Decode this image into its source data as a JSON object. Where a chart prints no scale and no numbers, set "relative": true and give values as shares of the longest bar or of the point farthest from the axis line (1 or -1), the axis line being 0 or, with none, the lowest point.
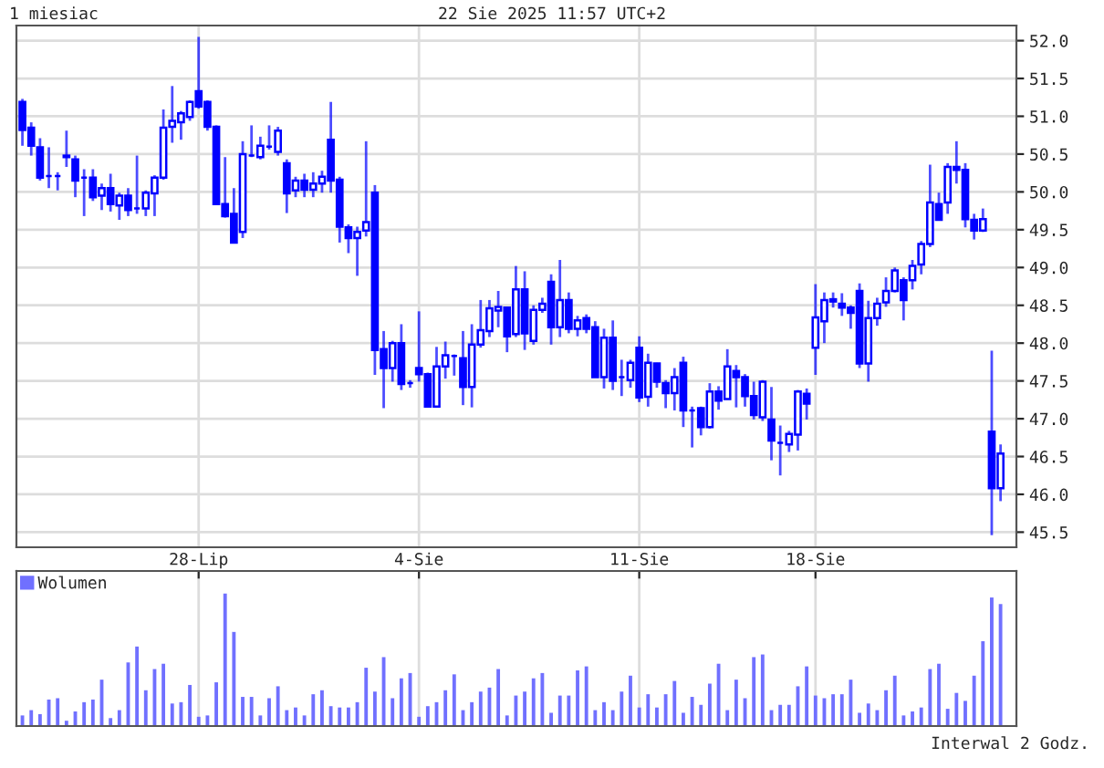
{
  "chart_data": [
    {
      "type": "candlestick",
      "title": "1 miesiac",
      "annotations": [
        "22 Sie 2025 11:57 UTC+2"
      ],
      "color": "#0000ff",
      "grid": true,
      "categories": [
        null,
        null,
        null,
        null,
        null,
        null,
        null,
        null,
        null,
        null,
        null,
        null,
        null,
        null,
        null,
        null,
        null,
        null,
        null,
        null,
        "28-Lip",
        null,
        null,
        null,
        null,
        null,
        null,
        null,
        null,
        null,
        null,
        null,
        null,
        null,
        null,
        null,
        null,
        null,
        null,
        null,
        null,
        null,
        null,
        null,
        null,
        "4-Sie",
        null,
        null,
        null,
        null,
        null,
        null,
        null,
        null,
        null,
        null,
        null,
        null,
        null,
        null,
        null,
        null,
        null,
        null,
        null,
        null,
        null,
        null,
        null,
        null,
        "11-Sie",
        null,
        null,
        null,
        null,
        null,
        null,
        null,
        null,
        null,
        null,
        null,
        null,
        null,
        null,
        null,
        null,
        null,
        null,
        null,
        "18-Sie",
        null,
        null,
        null,
        null,
        null,
        null,
        null,
        null,
        null,
        null,
        null,
        null,
        null,
        null,
        null,
        null,
        null,
        null,
        null,
        null,
        null
      ],
      "ylim": [
        45.3,
        52.2
      ],
      "yticks": [
        {
          "value": 45.5,
          "label": "45.5"
        },
        {
          "value": 46,
          "label": "46.0"
        },
        {
          "value": 46.5,
          "label": "46.5"
        },
        {
          "value": 47,
          "label": "47.0"
        },
        {
          "value": 47.5,
          "label": "47.5"
        },
        {
          "value": 48,
          "label": "48.0"
        },
        {
          "value": 48.5,
          "label": "48.5"
        },
        {
          "value": 49,
          "label": "49.0"
        },
        {
          "value": 49.5,
          "label": "49.5"
        },
        {
          "value": 50,
          "label": "50.0"
        },
        {
          "value": 50.5,
          "label": "50.5"
        },
        {
          "value": 51,
          "label": "51.0"
        },
        {
          "value": 51.5,
          "label": "51.5"
        },
        {
          "value": 52,
          "label": "52.0"
        }
      ],
      "ohlc": [
        [
          51.19,
          51.23,
          50.61,
          50.82
        ],
        [
          50.85,
          50.92,
          50.48,
          50.61
        ],
        [
          50.59,
          50.71,
          50.15,
          50.19
        ],
        [
          50.21,
          50.59,
          50.05,
          50.21
        ],
        [
          50.21,
          50.26,
          50.02,
          50.21
        ],
        [
          50.48,
          50.81,
          50.33,
          50.46
        ],
        [
          50.43,
          50.48,
          49.93,
          50.15
        ],
        [
          50.19,
          50.3,
          49.68,
          50.19
        ],
        [
          50.19,
          50.3,
          49.88,
          49.93
        ],
        [
          49.95,
          50.11,
          49.76,
          50.05
        ],
        [
          50.05,
          50.24,
          49.74,
          49.84
        ],
        [
          49.82,
          49.99,
          49.63,
          49.95
        ],
        [
          49.95,
          50.05,
          49.68,
          49.76
        ],
        [
          49.78,
          50.48,
          49.71,
          49.78
        ],
        [
          49.78,
          50.02,
          49.68,
          49.99
        ],
        [
          49.98,
          50.22,
          49.68,
          50.19
        ],
        [
          50.19,
          51.09,
          50.16,
          50.85
        ],
        [
          50.86,
          51.4,
          50.65,
          50.94
        ],
        [
          50.92,
          51.07,
          50.69,
          51.04
        ],
        [
          50.99,
          51.21,
          50.94,
          51.19
        ],
        [
          51.33,
          52.05,
          51.1,
          51.13
        ],
        [
          51.19,
          51.21,
          50.81,
          50.86
        ],
        [
          50.86,
          50.88,
          49.84,
          49.84
        ],
        [
          49.84,
          50.46,
          49.66,
          49.68
        ],
        [
          49.71,
          50.05,
          49.32,
          49.33
        ],
        [
          49.47,
          50.67,
          49.39,
          50.5
        ],
        [
          50.48,
          50.88,
          50.46,
          50.48
        ],
        [
          50.46,
          50.73,
          50.43,
          50.61
        ],
        [
          50.6,
          50.88,
          50.56,
          50.6
        ],
        [
          50.53,
          50.86,
          50.48,
          50.81
        ],
        [
          50.38,
          50.43,
          49.72,
          49.98
        ],
        [
          50.02,
          50.2,
          49.93,
          50.15
        ],
        [
          50.15,
          50.24,
          49.93,
          50.03
        ],
        [
          50.03,
          50.26,
          49.93,
          50.11
        ],
        [
          50.11,
          50.28,
          49.99,
          50.2
        ],
        [
          50.69,
          51.19,
          49.99,
          50.15
        ],
        [
          50.16,
          50.2,
          49.33,
          49.54
        ],
        [
          49.53,
          49.57,
          49.19,
          49.39
        ],
        [
          49.39,
          49.54,
          48.89,
          49.47
        ],
        [
          49.49,
          50.67,
          49.41,
          49.6
        ],
        [
          49.99,
          50.09,
          47.58,
          47.91
        ],
        [
          47.92,
          48.16,
          47.14,
          47.67
        ],
        [
          47.67,
          48.03,
          47.49,
          48.0
        ],
        [
          48.0,
          48.25,
          47.38,
          47.46
        ],
        [
          47.47,
          47.51,
          47.41,
          47.47
        ],
        [
          47.67,
          48.42,
          47.49,
          47.59
        ],
        [
          47.59,
          47.61,
          47.15,
          47.16
        ],
        [
          47.16,
          47.95,
          47.15,
          47.69
        ],
        [
          47.69,
          48.02,
          47.53,
          47.84
        ],
        [
          47.83,
          47.85,
          47.57,
          47.83
        ],
        [
          47.8,
          48.16,
          47.18,
          47.42
        ],
        [
          47.42,
          48.25,
          47.15,
          47.98
        ],
        [
          47.98,
          48.57,
          47.94,
          48.17
        ],
        [
          48.16,
          48.57,
          48.08,
          48.46
        ],
        [
          48.43,
          48.69,
          48.21,
          48.48
        ],
        [
          48.47,
          48.48,
          47.88,
          48.09
        ],
        [
          48.12,
          49.02,
          48.08,
          48.71
        ],
        [
          48.71,
          48.95,
          47.91,
          48.13
        ],
        [
          48.03,
          48.5,
          47.98,
          48.44
        ],
        [
          48.44,
          48.6,
          48.4,
          48.52
        ],
        [
          48.81,
          48.91,
          47.98,
          48.21
        ],
        [
          48.21,
          49.1,
          48.08,
          48.57
        ],
        [
          48.57,
          48.67,
          48.13,
          48.19
        ],
        [
          48.19,
          48.36,
          48.09,
          48.3
        ],
        [
          48.33,
          48.38,
          48.13,
          48.19
        ],
        [
          48.21,
          48.29,
          47.55,
          47.55
        ],
        [
          47.55,
          48.19,
          47.4,
          48.07
        ],
        [
          48.07,
          48.3,
          47.38,
          47.5
        ],
        [
          47.55,
          47.78,
          47.3,
          47.55
        ],
        [
          47.51,
          47.78,
          47.41,
          47.74
        ],
        [
          47.94,
          48.09,
          47.22,
          47.28
        ],
        [
          47.29,
          47.86,
          47.16,
          47.74
        ],
        [
          47.73,
          47.74,
          47.41,
          47.49
        ],
        [
          47.47,
          47.51,
          47.14,
          47.34
        ],
        [
          47.34,
          47.67,
          47.11,
          47.55
        ],
        [
          47.74,
          47.82,
          46.89,
          47.11
        ],
        [
          47.11,
          47.16,
          46.62,
          47.11
        ],
        [
          47.14,
          47.16,
          46.78,
          46.89
        ],
        [
          46.89,
          47.47,
          46.87,
          47.36
        ],
        [
          47.36,
          47.43,
          47.12,
          47.24
        ],
        [
          47.26,
          47.92,
          47.26,
          47.69
        ],
        [
          47.63,
          47.71,
          47.15,
          47.55
        ],
        [
          47.55,
          47.59,
          47.16,
          47.3
        ],
        [
          47.3,
          47.49,
          46.99,
          47.05
        ],
        [
          47.02,
          47.51,
          46.97,
          47.49
        ],
        [
          46.99,
          47.42,
          46.45,
          46.71
        ],
        [
          46.68,
          46.91,
          46.25,
          46.68
        ],
        [
          46.66,
          46.84,
          46.56,
          46.8
        ],
        [
          46.79,
          47.38,
          46.58,
          47.36
        ],
        [
          47.33,
          47.4,
          46.99,
          47.2
        ],
        [
          47.94,
          48.78,
          47.58,
          48.34
        ],
        [
          48.29,
          48.67,
          48.0,
          48.57
        ],
        [
          48.55,
          48.67,
          48.47,
          48.58
        ],
        [
          48.52,
          48.66,
          48.36,
          48.47
        ],
        [
          48.47,
          48.5,
          48.19,
          48.4
        ],
        [
          48.69,
          48.79,
          47.67,
          47.73
        ],
        [
          47.73,
          48.56,
          47.49,
          48.33
        ],
        [
          48.33,
          48.6,
          48.23,
          48.52
        ],
        [
          48.54,
          48.87,
          48.48,
          48.69
        ],
        [
          48.69,
          49.0,
          48.67,
          48.96
        ],
        [
          48.83,
          48.87,
          48.3,
          48.57
        ],
        [
          48.83,
          49.1,
          48.71,
          49.02
        ],
        [
          49.04,
          49.35,
          48.91,
          49.31
        ],
        [
          49.31,
          50.36,
          49.27,
          49.86
        ],
        [
          49.84,
          49.99,
          49.62,
          49.63
        ],
        [
          49.86,
          50.38,
          49.71,
          50.33
        ],
        [
          50.33,
          50.67,
          50.11,
          50.29
        ],
        [
          50.29,
          50.38,
          49.53,
          49.64
        ],
        [
          49.63,
          49.71,
          49.37,
          49.49
        ],
        [
          49.49,
          49.78,
          49.47,
          49.64
        ],
        [
          46.83,
          47.9,
          45.46,
          46.08
        ],
        [
          46.08,
          46.66,
          45.91,
          46.54
        ]
      ]
    },
    {
      "type": "bar",
      "relative": true,
      "grid": "x",
      "legend": "top left",
      "annotations": [
        "Interwal 2 Godz."
      ],
      "categories": [
        null,
        null,
        null,
        null,
        null,
        null,
        null,
        null,
        null,
        null,
        null,
        null,
        null,
        null,
        null,
        null,
        null,
        null,
        null,
        null,
        null,
        null,
        null,
        null,
        null,
        null,
        null,
        null,
        null,
        null,
        null,
        null,
        null,
        null,
        null,
        null,
        null,
        null,
        null,
        null,
        null,
        null,
        null,
        null,
        null,
        null,
        null,
        null,
        null,
        null,
        null,
        null,
        null,
        null,
        null,
        null,
        null,
        null,
        null,
        null,
        null,
        null,
        null,
        null,
        null,
        null,
        null,
        null,
        null,
        null,
        null,
        null,
        null,
        null,
        null,
        null,
        null,
        null,
        null,
        null,
        null,
        null,
        null,
        null,
        null,
        null,
        null,
        null,
        null,
        null,
        null,
        null,
        null,
        null,
        null,
        null,
        null,
        null,
        null,
        null,
        null,
        null,
        null,
        null,
        null,
        null,
        null,
        null,
        null,
        null,
        null,
        null
      ],
      "series": [
        {
          "name": "Wolumen",
          "color": "#7070ff",
          "values": [
            0.08,
            0.12,
            0.09,
            0.2,
            0.21,
            0.04,
            0.11,
            0.18,
            0.2,
            0.35,
            0.06,
            0.12,
            0.48,
            0.6,
            0.27,
            0.43,
            0.47,
            0.17,
            0.18,
            0.31,
            0.07,
            0.08,
            0.33,
            1,
            0.71,
            0.22,
            0.22,
            0.08,
            0.21,
            0.3,
            0.12,
            0.14,
            0.08,
            0.24,
            0.27,
            0.15,
            0.14,
            0.14,
            0.18,
            0.44,
            0.26,
            0.52,
            0.21,
            0.36,
            0.4,
            0.07,
            0.15,
            0.18,
            0.27,
            0.39,
            0.12,
            0.18,
            0.26,
            0.29,
            0.43,
            0.08,
            0.23,
            0.26,
            0.36,
            0.4,
            0.1,
            0.23,
            0.23,
            0.42,
            0.45,
            0.12,
            0.18,
            0.12,
            0.26,
            0.38,
            0.14,
            0.24,
            0.14,
            0.24,
            0.34,
            0.1,
            0.22,
            0.16,
            0.32,
            0.47,
            0.12,
            0.35,
            0.21,
            0.52,
            0.54,
            0.12,
            0.16,
            0.16,
            0.3,
            0.45,
            0.23,
            0.21,
            0.24,
            0.24,
            0.35,
            0.1,
            0.17,
            0.12,
            0.27,
            0.38,
            0.08,
            0.11,
            0.14,
            0.43,
            0.47,
            0.13,
            0.25,
            0.19,
            0.38,
            0.64,
            0.97,
            0.92
          ]
        }
      ]
    }
  ]
}
